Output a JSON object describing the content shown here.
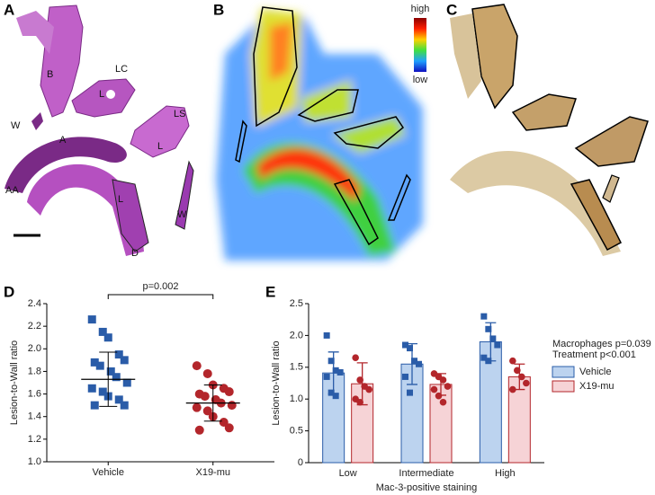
{
  "panels": {
    "A": {
      "label": "A",
      "annotations": [
        "B",
        "LC",
        "L",
        "W",
        "LS",
        "L",
        "AA",
        "A",
        "L",
        "W",
        "D"
      ]
    },
    "B": {
      "label": "B",
      "colorbar": [
        "high",
        "low"
      ]
    },
    "C": {
      "label": "C"
    }
  },
  "chart_data": [
    {
      "type": "dot",
      "panel_label": "D",
      "ylabel": "Lesion-to-Wall ratio",
      "categories": [
        "Vehicle",
        "X19-mu"
      ],
      "colors": [
        "#2a5ca8",
        "#b3262b"
      ],
      "points": [
        [
          2.26,
          2.15,
          2.1,
          1.95,
          1.9,
          1.88,
          1.85,
          1.8,
          1.75,
          1.7,
          1.65,
          1.62,
          1.58,
          1.55,
          1.5,
          1.5
        ],
        [
          1.85,
          1.78,
          1.68,
          1.65,
          1.62,
          1.6,
          1.58,
          1.55,
          1.52,
          1.5,
          1.48,
          1.45,
          1.4,
          1.35,
          1.3,
          1.28
        ]
      ],
      "means": [
        1.73,
        1.52
      ],
      "sds": [
        0.24,
        0.16
      ],
      "annotation": "p=0.002",
      "ylim": [
        1.0,
        2.4
      ],
      "yticks": [
        {
          "value": 1.0,
          "label": "1.0"
        },
        1.2,
        1.4,
        1.6,
        1.8,
        {
          "value": 2.0,
          "label": "2.0"
        },
        2.2,
        2.4
      ]
    },
    {
      "type": "bar",
      "panel_label": "E",
      "ylabel": "Lesion-to-Wall ratio",
      "xlabel": "Mac-3-positive staining",
      "categories": [
        "Low",
        "Intermediate",
        "High"
      ],
      "series": [
        {
          "name": "Vehicle",
          "color": "#bcd3ef",
          "edge": "#2a5ca8",
          "values": [
            1.41,
            1.55,
            1.9
          ],
          "sds": [
            0.33,
            0.32,
            0.3
          ],
          "points": [
            [
              2.0,
              1.6,
              1.45,
              1.42,
              1.35,
              1.1,
              1.05
            ],
            [
              1.85,
              1.8,
              1.6,
              1.55,
              1.35,
              1.1
            ],
            [
              2.3,
              2.1,
              1.95,
              1.85,
              1.65,
              1.6
            ]
          ]
        },
        {
          "name": "X19-mu",
          "color": "#f6d3d6",
          "edge": "#b3262b",
          "values": [
            1.24,
            1.23,
            1.35
          ],
          "sds": [
            0.33,
            0.17,
            0.2
          ],
          "points": [
            [
              1.65,
              1.3,
              1.2,
              1.15,
              1.0,
              0.95
            ],
            [
              1.4,
              1.35,
              1.3,
              1.2,
              1.15,
              1.05,
              0.95
            ],
            [
              1.6,
              1.45,
              1.35,
              1.25,
              1.15
            ]
          ]
        }
      ],
      "annotations": [
        "Macrophages p=0.039",
        "Treatment p<0.001"
      ],
      "ylim": [
        0,
        2.5
      ],
      "yticks": [
        0,
        0.5,
        {
          "value": 1.0,
          "label": "1.0"
        },
        1.5,
        {
          "value": 2.0,
          "label": "2.0"
        },
        2.5
      ]
    }
  ]
}
